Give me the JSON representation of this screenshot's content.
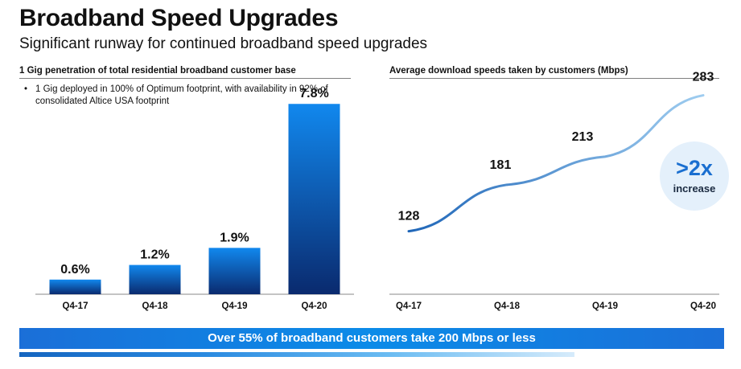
{
  "header": {
    "title": "Broadband Speed Upgrades",
    "subtitle": "Significant runway for continued broadband speed upgrades"
  },
  "left_panel": {
    "heading": "1 Gig penetration of total residential broadband customer base",
    "bullet": "1 Gig deployed in 100% of Optimum footprint, with availability in 92% of consolidated Altice USA footprint"
  },
  "right_panel": {
    "heading": "Average download speeds taken by customers (Mbps)",
    "badge_value": ">2x",
    "badge_text": "increase"
  },
  "banner": {
    "text": "Over 55% of broadband customers take 200 Mbps or less"
  },
  "colors": {
    "bar_top": "#1188ee",
    "bar_bottom": "#0a2a6e",
    "line_start": "#1f66b8",
    "line_end": "#9fcdf0",
    "badge_bg": "#e4f0fb",
    "badge_text": "#1a6fd0"
  },
  "chart_data": [
    {
      "type": "bar",
      "title": "1 Gig penetration of total residential broadband customer base",
      "categories": [
        "Q4-17",
        "Q4-18",
        "Q4-19",
        "Q4-20"
      ],
      "values": [
        0.6,
        1.2,
        1.9,
        7.8
      ],
      "labels": [
        "0.6%",
        "1.2%",
        "1.9%",
        "7.8%"
      ],
      "ylim": [
        0,
        8.5
      ],
      "grid": false
    },
    {
      "type": "line",
      "title": "Average download speeds taken by customers (Mbps)",
      "x": [
        "Q4-17",
        "Q4-18",
        "Q4-19",
        "Q4-20"
      ],
      "series": [
        {
          "values": [
            128,
            181,
            213,
            283
          ]
        }
      ],
      "labels": [
        "128",
        "181",
        "213",
        "283"
      ],
      "ylim": [
        80,
        300
      ],
      "grid": false
    }
  ]
}
